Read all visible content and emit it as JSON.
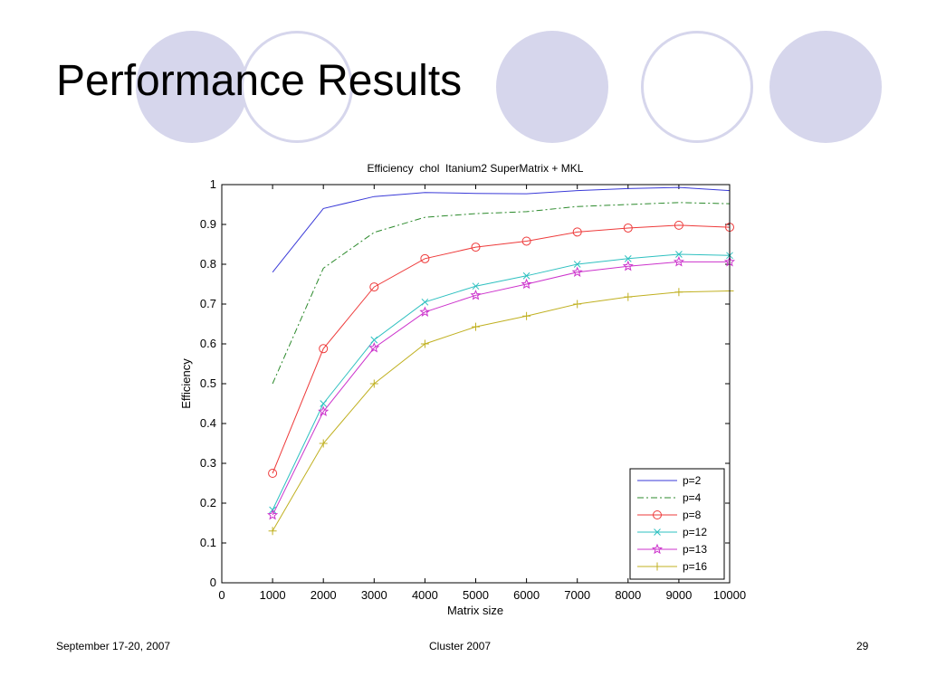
{
  "slide": {
    "title": "Performance Results",
    "footer_left": "September 17-20, 2007",
    "footer_center": "Cluster 2007",
    "footer_right": "29",
    "decoration_colors": {
      "circle": "#d6d6ec"
    }
  },
  "chart_data": {
    "type": "line",
    "title": "Efficiency  chol  Itanium2 SuperMatrix + MKL",
    "xlabel": "Matrix size",
    "ylabel": "Efficiency",
    "xlim": [
      0,
      10000
    ],
    "ylim": [
      0,
      1
    ],
    "xticks": [
      0,
      1000,
      2000,
      3000,
      4000,
      5000,
      6000,
      7000,
      8000,
      9000,
      10000
    ],
    "yticks": [
      0,
      0.1,
      0.2,
      0.3,
      0.4,
      0.5,
      0.6,
      0.7,
      0.8,
      0.9,
      1
    ],
    "ytick_labels": [
      "0",
      "0.1",
      "0.2",
      "0.3",
      "0.4",
      "0.5",
      "0.6",
      "0.7",
      "0.8",
      "0.9",
      "1"
    ],
    "grid": false,
    "legend_position": "bottom-right",
    "x": [
      1000,
      2000,
      3000,
      4000,
      5000,
      6000,
      7000,
      8000,
      9000,
      10000
    ],
    "series": [
      {
        "name": "p=2",
        "color": "#3a3ad8",
        "dash": "",
        "marker": "none",
        "values": [
          0.78,
          0.94,
          0.97,
          0.98,
          0.978,
          0.977,
          0.985,
          0.99,
          0.993,
          0.985
        ]
      },
      {
        "name": "p=4",
        "color": "#2c8a2c",
        "dash": "7 3 2 3",
        "marker": "none",
        "values": [
          0.5,
          0.79,
          0.88,
          0.918,
          0.927,
          0.932,
          0.945,
          0.95,
          0.955,
          0.952
        ]
      },
      {
        "name": "p=8",
        "color": "#ee3a3a",
        "dash": "",
        "marker": "circle",
        "values": [
          0.275,
          0.588,
          0.743,
          0.814,
          0.843,
          0.858,
          0.881,
          0.891,
          0.898,
          0.893
        ]
      },
      {
        "name": "p=12",
        "color": "#2ec0c0",
        "dash": "",
        "marker": "x",
        "values": [
          0.183,
          0.45,
          0.61,
          0.705,
          0.745,
          0.771,
          0.8,
          0.814,
          0.825,
          0.822
        ]
      },
      {
        "name": "p=13",
        "color": "#cc33cc",
        "dash": "",
        "marker": "star",
        "values": [
          0.17,
          0.43,
          0.59,
          0.68,
          0.722,
          0.75,
          0.78,
          0.795,
          0.806,
          0.806
        ]
      },
      {
        "name": "p=16",
        "color": "#c0b020",
        "dash": "",
        "marker": "plus",
        "values": [
          0.13,
          0.35,
          0.5,
          0.6,
          0.643,
          0.67,
          0.7,
          0.718,
          0.73,
          0.733
        ]
      }
    ]
  }
}
